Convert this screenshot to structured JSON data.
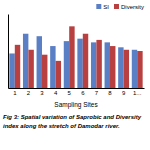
{
  "chart_data": {
    "type": "bar",
    "categories": [
      "1",
      "2",
      "3",
      "4",
      "5",
      "6",
      "7",
      "8",
      "9",
      "1..."
    ],
    "series": [
      {
        "name": "SI",
        "color": "#5b7fc4",
        "values": [
          1.4,
          2.2,
          2.1,
          1.7,
          1.9,
          2.0,
          1.85,
          1.85,
          1.65,
          1.55
        ]
      },
      {
        "name": "Diversity",
        "color": "#b94040",
        "values": [
          1.75,
          1.55,
          1.35,
          1.1,
          2.5,
          2.2,
          1.95,
          1.7,
          1.55,
          1.5
        ]
      }
    ],
    "x_label": "Sampling Sites",
    "annotations": [
      "Fig 3: Spatial variation of Saprobic and Diversity",
      "index along the stretch of Damodar river."
    ],
    "ylim": [
      0,
      3.0
    ],
    "yticks": [],
    "grid": false,
    "legend": "upper right",
    "tick_labels": "x"
  }
}
